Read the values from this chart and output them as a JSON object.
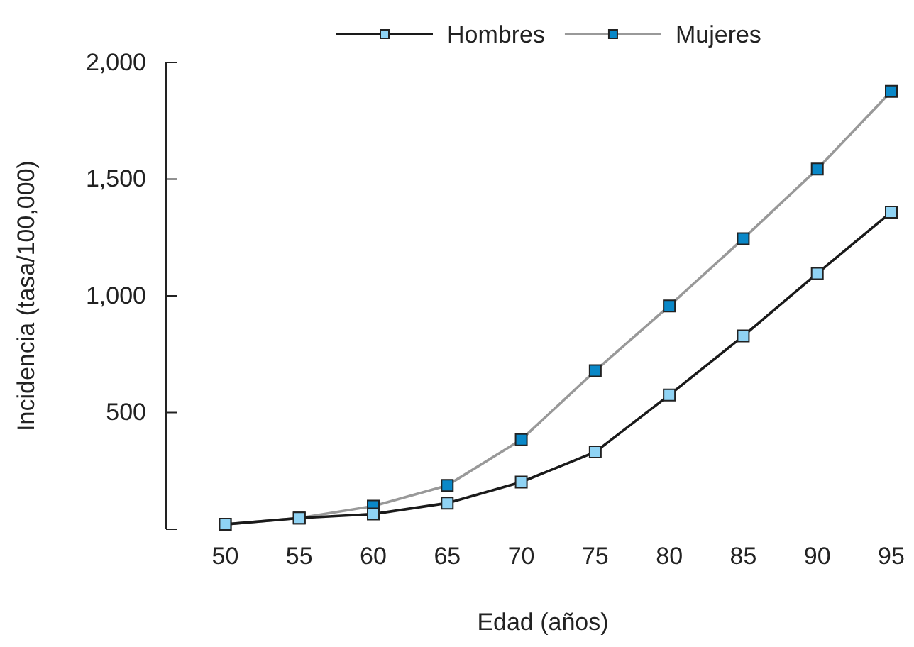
{
  "chart_data": {
    "type": "line",
    "xlabel": "Edad (años)",
    "ylabel": "Incidencia (tasa/100,000)",
    "x": [
      50,
      55,
      60,
      65,
      70,
      75,
      80,
      85,
      90,
      95
    ],
    "xlim": [
      46,
      95
    ],
    "xticks": [
      50,
      55,
      60,
      65,
      70,
      75,
      80,
      85,
      90,
      95
    ],
    "ylim": [
      0,
      2000
    ],
    "yticks": [
      {
        "value": 0,
        "label": null
      },
      {
        "value": 500,
        "label": "500"
      },
      {
        "value": 1000,
        "label": "1,000"
      },
      {
        "value": 1500,
        "label": "1,500"
      },
      {
        "value": 2000,
        "label": "2,000"
      }
    ],
    "series": [
      {
        "name": "Hombres",
        "color": "#8fd3f4",
        "values": [
          21,
          48,
          65,
          112,
          202,
          331,
          575,
          828,
          1096,
          1359
        ]
      },
      {
        "name": "Mujeres",
        "color": "#0a88c8",
        "values": [
          21,
          48,
          99,
          188,
          384,
          679,
          957,
          1245,
          1543,
          1876
        ]
      }
    ],
    "marker": "square",
    "legend": "top",
    "grid": false
  }
}
